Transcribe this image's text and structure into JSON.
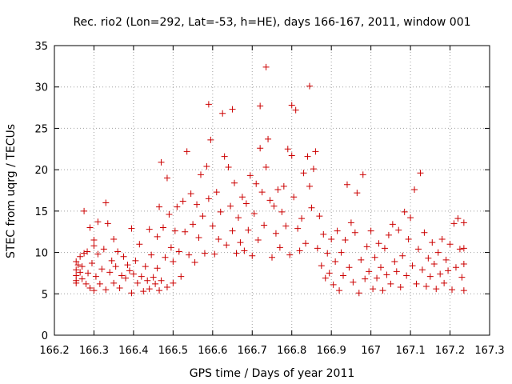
{
  "chart_data": {
    "type": "scatter",
    "title": "Rec. rio2 (Lon=292, Lat=-53, h=HE), days 166-167, 2011, window 001",
    "xlabel": "GPS time / Days of year 2011",
    "ylabel": "STEC from uqrg / TECUs",
    "xlim": [
      166.2,
      167.3
    ],
    "ylim": [
      0,
      35
    ],
    "xticks": [
      166.2,
      166.3,
      166.4,
      166.5,
      166.6,
      166.7,
      166.8,
      166.9,
      167,
      167.1,
      167.2,
      167.3
    ],
    "xtick_labels": [
      "166.2",
      "166.3",
      "166.4",
      "166.5",
      "166.6",
      "166.7",
      "166.8",
      "166.9",
      "167",
      "167.1",
      "167.2",
      "167.3"
    ],
    "yticks": [
      0,
      5,
      10,
      15,
      20,
      25,
      30,
      35
    ],
    "ytick_labels": [
      "0",
      "5",
      "10",
      "15",
      "20",
      "25",
      "30",
      "35"
    ],
    "grid": true,
    "marker": "plus",
    "marker_color": "#cc0000",
    "series": [
      {
        "points": [
          [
            166.255,
            8.9
          ],
          [
            166.255,
            7.9
          ],
          [
            166.255,
            7.2
          ],
          [
            166.255,
            6.6
          ],
          [
            166.255,
            6.3
          ],
          [
            166.26,
            8.5
          ],
          [
            166.265,
            9.5
          ],
          [
            166.265,
            7.6
          ],
          [
            166.27,
            8.3
          ],
          [
            166.27,
            6.8
          ],
          [
            166.275,
            15.0
          ],
          [
            166.275,
            9.9
          ],
          [
            166.28,
            6.2
          ],
          [
            166.283,
            10.1
          ],
          [
            166.285,
            7.5
          ],
          [
            166.29,
            13.0
          ],
          [
            166.29,
            5.7
          ],
          [
            166.295,
            8.7
          ],
          [
            166.3,
            11.5
          ],
          [
            166.3,
            10.8
          ],
          [
            166.3,
            5.4
          ],
          [
            166.305,
            7.1
          ],
          [
            166.31,
            13.7
          ],
          [
            166.31,
            9.8
          ],
          [
            166.315,
            6.2
          ],
          [
            166.32,
            8.0
          ],
          [
            166.325,
            10.4
          ],
          [
            166.33,
            16.0
          ],
          [
            166.33,
            5.5
          ],
          [
            166.335,
            13.5
          ],
          [
            166.34,
            7.6
          ],
          [
            166.345,
            9.0
          ],
          [
            166.35,
            11.6
          ],
          [
            166.35,
            6.3
          ],
          [
            166.355,
            8.3
          ],
          [
            166.36,
            10.1
          ],
          [
            166.365,
            5.7
          ],
          [
            166.37,
            7.2
          ],
          [
            166.375,
            9.5
          ],
          [
            166.38,
            6.9
          ],
          [
            166.385,
            8.5
          ],
          [
            166.39,
            7.8
          ],
          [
            166.395,
            12.9
          ],
          [
            166.395,
            5.1
          ],
          [
            166.4,
            7.4
          ],
          [
            166.405,
            9.0
          ],
          [
            166.41,
            6.3
          ],
          [
            166.415,
            11.0
          ],
          [
            166.42,
            7.1
          ],
          [
            166.425,
            5.3
          ],
          [
            166.43,
            8.3
          ],
          [
            166.435,
            6.6
          ],
          [
            166.44,
            12.8
          ],
          [
            166.44,
            5.6
          ],
          [
            166.445,
            9.7
          ],
          [
            166.45,
            7.0
          ],
          [
            166.455,
            6.2
          ],
          [
            166.46,
            11.9
          ],
          [
            166.46,
            8.1
          ],
          [
            166.465,
            15.5
          ],
          [
            166.465,
            5.4
          ],
          [
            166.47,
            20.9
          ],
          [
            166.47,
            6.6
          ],
          [
            166.475,
            13.0
          ],
          [
            166.48,
            9.4
          ],
          [
            166.485,
            19.0
          ],
          [
            166.485,
            5.8
          ],
          [
            166.49,
            14.6
          ],
          [
            166.495,
            10.6
          ],
          [
            166.5,
            8.9
          ],
          [
            166.5,
            6.3
          ],
          [
            166.505,
            12.6
          ],
          [
            166.51,
            15.5
          ],
          [
            166.515,
            10.1
          ],
          [
            166.52,
            7.1
          ],
          [
            166.525,
            16.2
          ],
          [
            166.53,
            12.5
          ],
          [
            166.535,
            22.2
          ],
          [
            166.54,
            9.7
          ],
          [
            166.545,
            17.1
          ],
          [
            166.55,
            13.4
          ],
          [
            166.555,
            8.8
          ],
          [
            166.56,
            15.8
          ],
          [
            166.565,
            11.8
          ],
          [
            166.57,
            19.4
          ],
          [
            166.575,
            14.4
          ],
          [
            166.58,
            9.9
          ],
          [
            166.585,
            20.4
          ],
          [
            166.59,
            27.9
          ],
          [
            166.59,
            16.5
          ],
          [
            166.595,
            23.6
          ],
          [
            166.6,
            13.2
          ],
          [
            166.605,
            9.8
          ],
          [
            166.61,
            17.3
          ],
          [
            166.615,
            11.6
          ],
          [
            166.62,
            14.9
          ],
          [
            166.625,
            26.8
          ],
          [
            166.63,
            21.6
          ],
          [
            166.635,
            10.9
          ],
          [
            166.64,
            20.3
          ],
          [
            166.645,
            15.6
          ],
          [
            166.65,
            27.3
          ],
          [
            166.65,
            12.6
          ],
          [
            166.655,
            18.4
          ],
          [
            166.66,
            9.9
          ],
          [
            166.665,
            14.2
          ],
          [
            166.67,
            11.2
          ],
          [
            166.675,
            16.7
          ],
          [
            166.68,
            10.2
          ],
          [
            166.685,
            15.9
          ],
          [
            166.69,
            12.7
          ],
          [
            166.695,
            19.3
          ],
          [
            166.7,
            9.6
          ],
          [
            166.705,
            14.7
          ],
          [
            166.71,
            18.3
          ],
          [
            166.715,
            11.5
          ],
          [
            166.72,
            27.7
          ],
          [
            166.72,
            22.6
          ],
          [
            166.725,
            17.3
          ],
          [
            166.73,
            13.3
          ],
          [
            166.735,
            32.4
          ],
          [
            166.735,
            20.3
          ],
          [
            166.74,
            23.7
          ],
          [
            166.745,
            16.3
          ],
          [
            166.75,
            9.4
          ],
          [
            166.755,
            15.6
          ],
          [
            166.76,
            12.3
          ],
          [
            166.765,
            17.6
          ],
          [
            166.77,
            10.6
          ],
          [
            166.775,
            14.9
          ],
          [
            166.78,
            18.0
          ],
          [
            166.785,
            13.2
          ],
          [
            166.79,
            22.5
          ],
          [
            166.795,
            9.7
          ],
          [
            166.8,
            21.7
          ],
          [
            166.8,
            27.8
          ],
          [
            166.805,
            16.7
          ],
          [
            166.81,
            27.2
          ],
          [
            166.815,
            12.9
          ],
          [
            166.82,
            10.2
          ],
          [
            166.825,
            14.1
          ],
          [
            166.83,
            19.6
          ],
          [
            166.835,
            11.1
          ],
          [
            166.84,
            21.6
          ],
          [
            166.845,
            30.1
          ],
          [
            166.845,
            18.0
          ],
          [
            166.85,
            15.4
          ],
          [
            166.855,
            20.1
          ],
          [
            166.86,
            22.2
          ],
          [
            166.865,
            10.5
          ],
          [
            166.87,
            14.4
          ],
          [
            166.875,
            8.4
          ],
          [
            166.88,
            12.2
          ],
          [
            166.885,
            6.9
          ],
          [
            166.89,
            9.9
          ],
          [
            166.895,
            7.5
          ],
          [
            166.9,
            11.6
          ],
          [
            166.905,
            6.1
          ],
          [
            166.91,
            8.9
          ],
          [
            166.915,
            12.6
          ],
          [
            166.92,
            5.4
          ],
          [
            166.925,
            10.0
          ],
          [
            166.93,
            7.2
          ],
          [
            166.935,
            11.5
          ],
          [
            166.94,
            18.2
          ],
          [
            166.945,
            8.2
          ],
          [
            166.95,
            13.6
          ],
          [
            166.955,
            6.4
          ],
          [
            166.96,
            12.4
          ],
          [
            166.965,
            17.2
          ],
          [
            166.97,
            5.1
          ],
          [
            166.975,
            9.1
          ],
          [
            166.98,
            19.4
          ],
          [
            166.985,
            6.8
          ],
          [
            166.99,
            10.7
          ],
          [
            166.995,
            7.7
          ],
          [
            167.0,
            12.6
          ],
          [
            167.005,
            5.6
          ],
          [
            167.01,
            9.4
          ],
          [
            167.015,
            6.9
          ],
          [
            167.02,
            11.1
          ],
          [
            167.025,
            8.2
          ],
          [
            167.03,
            5.4
          ],
          [
            167.035,
            10.5
          ],
          [
            167.04,
            7.3
          ],
          [
            167.045,
            12.1
          ],
          [
            167.05,
            6.2
          ],
          [
            167.055,
            13.4
          ],
          [
            167.06,
            8.9
          ],
          [
            167.065,
            7.7
          ],
          [
            167.07,
            12.7
          ],
          [
            167.075,
            5.8
          ],
          [
            167.08,
            9.6
          ],
          [
            167.085,
            14.9
          ],
          [
            167.09,
            7.2
          ],
          [
            167.095,
            11.6
          ],
          [
            167.1,
            14.2
          ],
          [
            167.105,
            8.4
          ],
          [
            167.11,
            17.6
          ],
          [
            167.115,
            6.2
          ],
          [
            167.12,
            10.4
          ],
          [
            167.125,
            19.6
          ],
          [
            167.13,
            7.9
          ],
          [
            167.135,
            12.4
          ],
          [
            167.14,
            5.9
          ],
          [
            167.145,
            9.3
          ],
          [
            167.15,
            7.1
          ],
          [
            167.155,
            11.2
          ],
          [
            167.16,
            8.6
          ],
          [
            167.165,
            5.6
          ],
          [
            167.17,
            10.0
          ],
          [
            167.175,
            7.4
          ],
          [
            167.18,
            11.6
          ],
          [
            167.185,
            6.3
          ],
          [
            167.19,
            9.1
          ],
          [
            167.195,
            7.8
          ],
          [
            167.2,
            11.0
          ],
          [
            167.205,
            5.5
          ],
          [
            167.21,
            13.5
          ],
          [
            167.215,
            8.2
          ],
          [
            167.22,
            14.1
          ],
          [
            167.225,
            10.4
          ],
          [
            167.23,
            7.0
          ],
          [
            167.235,
            13.6
          ],
          [
            167.235,
            10.5
          ],
          [
            167.235,
            8.6
          ],
          [
            167.235,
            5.4
          ]
        ]
      }
    ]
  }
}
